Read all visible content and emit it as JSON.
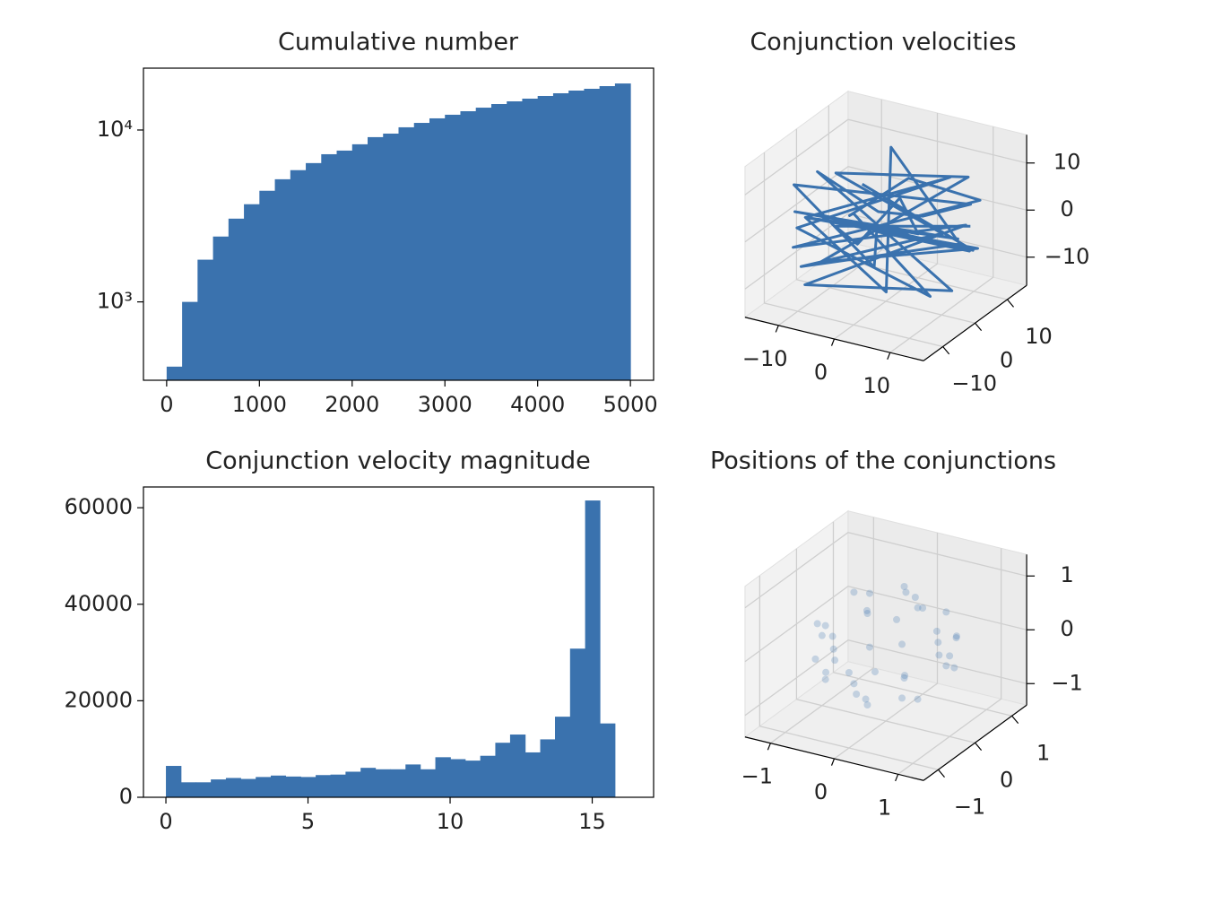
{
  "chart_data": [
    {
      "type": "histogram",
      "title": "Cumulative number",
      "color": "#3a72ae",
      "ylog": true,
      "bins": [
        0,
        166.7,
        333.3,
        500,
        666.7,
        833.3,
        1000,
        1166.7,
        1333.3,
        1500,
        1666.7,
        1833.3,
        2000,
        2166.7,
        2333.3,
        2500,
        2666.7,
        2833.3,
        3000,
        3166.7,
        3333.3,
        3500,
        3666.7,
        3833.3,
        4000,
        4166.7,
        4333.3,
        4500,
        4666.7,
        4833.3,
        5000
      ],
      "values": [
        420,
        1000,
        1760,
        2400,
        3050,
        3700,
        4430,
        5170,
        5840,
        6420,
        7230,
        7590,
        8260,
        9090,
        9530,
        10370,
        11000,
        11690,
        12270,
        12860,
        13490,
        14160,
        14680,
        15220,
        15780,
        16360,
        16960,
        17370,
        18000,
        18650
      ],
      "xlim": [
        -250,
        5250
      ],
      "xticks": [
        0,
        1000,
        2000,
        3000,
        4000,
        5000
      ],
      "ylim": [
        350,
        22900
      ],
      "yticks": [
        {
          "value": 1000,
          "label": "10³"
        },
        {
          "value": 10000,
          "label": "10⁴"
        }
      ]
    },
    {
      "type": "line3d",
      "title": "Conjunction velocities",
      "color": "#3a72ae",
      "x": [
        14,
        -12,
        3,
        -5,
        11,
        -14,
        6,
        -8,
        13,
        -3,
        9,
        -13,
        2,
        -10,
        15,
        -6,
        7,
        -15,
        4,
        -9,
        12,
        -11,
        1,
        -4,
        14,
        -12,
        8,
        -7,
        13,
        -14,
        5,
        -2,
        10,
        -13,
        6,
        -8,
        15,
        -5,
        11,
        -10
      ],
      "y": [
        2,
        5,
        -14,
        13,
        -9,
        -4,
        12,
        -11,
        6,
        -15,
        10,
        7,
        14,
        -9,
        -3,
        12,
        -12,
        1,
        13,
        -12,
        -7,
        9,
        -13,
        14,
        5,
        -8,
        11,
        -13,
        -2,
        3,
        -11,
        15,
        9,
        -6,
        -14,
        11,
        0,
        -12,
        8,
        10
      ],
      "z": [
        3,
        -6,
        4,
        -2,
        6,
        1,
        -7,
        5,
        -4,
        -1,
        8,
        4,
        -8,
        -7,
        2,
        9,
        -6,
        -3,
        5,
        3,
        -8,
        -5,
        9,
        2,
        7,
        -4,
        -3,
        -8,
        -9,
        6,
        10,
        -6,
        3,
        8,
        0,
        -9,
        -1,
        7,
        -6,
        1
      ],
      "xlim": [
        -16,
        16
      ],
      "ylim": [
        -16,
        16
      ],
      "zlim": [
        -16,
        16
      ],
      "xticks": [
        {
          "value": -10,
          "label": "−10"
        },
        0,
        10
      ],
      "yticks": [
        {
          "value": -10,
          "label": "−10"
        },
        0,
        10
      ],
      "zticks": [
        {
          "value": -10,
          "label": "−10"
        },
        0,
        10
      ]
    },
    {
      "type": "histogram",
      "title": "Conjunction velocity magnitude",
      "color": "#3a72ae",
      "ylog": false,
      "bins": [
        0,
        0.53,
        1.05,
        1.58,
        2.11,
        2.63,
        3.16,
        3.69,
        4.21,
        4.74,
        5.27,
        5.79,
        6.32,
        6.85,
        7.37,
        7.9,
        8.43,
        8.95,
        9.48,
        10.01,
        10.53,
        11.06,
        11.59,
        12.11,
        12.64,
        13.17,
        13.69,
        14.22,
        14.75,
        15.27,
        15.8
      ],
      "values": [
        6500,
        3100,
        3100,
        3700,
        4000,
        3800,
        4200,
        4500,
        4300,
        4200,
        4600,
        4700,
        5300,
        6100,
        5800,
        5800,
        6800,
        5800,
        8300,
        7900,
        7600,
        8600,
        11300,
        13000,
        9300,
        12000,
        16700,
        30800,
        61500,
        15300
      ],
      "xlim": [
        -0.79,
        17.16
      ],
      "xticks": [
        0,
        5,
        10,
        15
      ],
      "ylim": [
        0,
        64300
      ],
      "yticks": [
        0,
        20000,
        40000,
        60000
      ]
    },
    {
      "type": "scatter3d",
      "title": "Positions of the conjunctions",
      "color": "#3a72ae",
      "x": [
        1,
        0,
        -1,
        0,
        0.7,
        -0.7,
        -0.7,
        0.7,
        0.5,
        -0.5,
        0,
        0,
        0.5,
        -0.5,
        0,
        0,
        0.6,
        -0.6,
        -0.6,
        0.6,
        0.6,
        -0.6,
        -0.6,
        0.6,
        0.9,
        -0.9,
        0.3,
        -0.3,
        0.2,
        -0.2,
        0.95,
        -0.95,
        0.8,
        -0.8,
        0,
        0,
        0.4,
        -0.4,
        0.85,
        -0.45
      ],
      "y": [
        0,
        1,
        0,
        -1,
        0.7,
        0.7,
        -0.7,
        -0.7,
        0,
        0,
        0.5,
        -0.5,
        0,
        0,
        0.5,
        -0.5,
        0.6,
        0.6,
        -0.6,
        -0.6,
        0.6,
        0.6,
        -0.6,
        -0.6,
        0.3,
        -0.3,
        0.9,
        -0.9,
        0.2,
        -0.2,
        -0.2,
        0.2,
        0,
        0,
        0.8,
        -0.8,
        -0.4,
        0.4,
        0.45,
        -0.85
      ],
      "z": [
        0.1,
        0.2,
        -0.1,
        0,
        0,
        0.1,
        -0.1,
        0,
        0.85,
        0.85,
        0.85,
        0.85,
        -0.85,
        -0.85,
        -0.85,
        -0.85,
        0.5,
        0.5,
        0.5,
        0.5,
        -0.5,
        -0.5,
        -0.5,
        -0.5,
        -0.3,
        0.3,
        -0.3,
        0.3,
        0.95,
        -0.95,
        0.2,
        -0.2,
        0.5,
        -0.5,
        0.5,
        -0.5,
        0.8,
        -0.8,
        0.2,
        -0.2
      ],
      "xlim": [
        -1.4,
        1.4
      ],
      "ylim": [
        -1.4,
        1.4
      ],
      "zlim": [
        -1.4,
        1.4
      ],
      "xticks": [
        {
          "value": -1,
          "label": "−1"
        },
        0,
        1
      ],
      "yticks": [
        {
          "value": -1,
          "label": "−1"
        },
        0,
        1
      ],
      "zticks": [
        {
          "value": -1,
          "label": "−1"
        },
        0,
        1
      ]
    }
  ]
}
